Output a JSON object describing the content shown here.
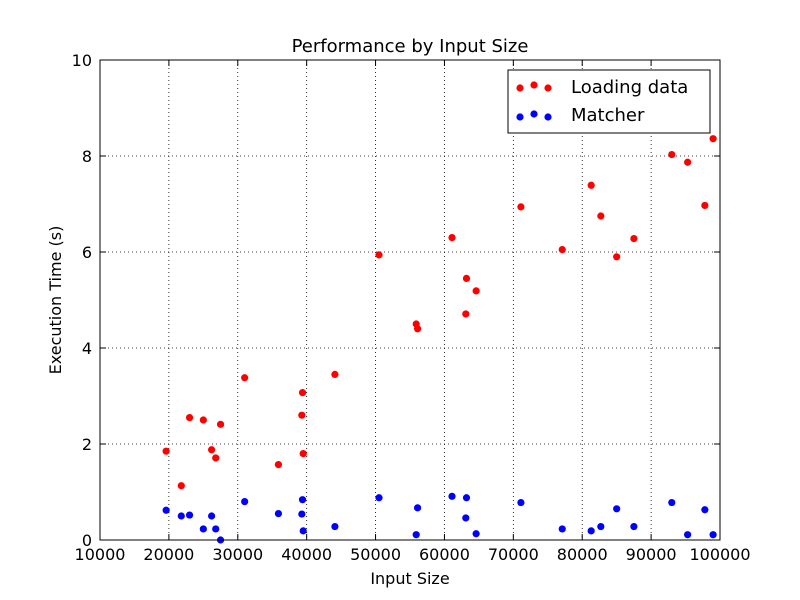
{
  "chart_data": {
    "type": "scatter",
    "title": "Performance by Input Size",
    "xlabel": "Input Size",
    "ylabel": "Execution Time (s)",
    "xlim": [
      10000,
      100000
    ],
    "ylim": [
      0,
      10
    ],
    "xticks": [
      10000,
      20000,
      30000,
      40000,
      50000,
      60000,
      70000,
      80000,
      90000,
      100000
    ],
    "yticks": [
      0,
      2,
      4,
      6,
      8,
      10
    ],
    "grid": true,
    "legend_position": "top-right",
    "series": [
      {
        "name": "Loading data",
        "color": "#ff0000",
        "points": [
          [
            19600,
            1.85
          ],
          [
            21800,
            1.13
          ],
          [
            23000,
            2.55
          ],
          [
            25000,
            2.5
          ],
          [
            26200,
            1.88
          ],
          [
            26800,
            1.71
          ],
          [
            27500,
            2.41
          ],
          [
            31000,
            3.38
          ],
          [
            35900,
            1.57
          ],
          [
            39300,
            2.6
          ],
          [
            39400,
            3.07
          ],
          [
            39500,
            1.8
          ],
          [
            44100,
            3.45
          ],
          [
            50500,
            5.94
          ],
          [
            55900,
            4.5
          ],
          [
            56100,
            4.4
          ],
          [
            61100,
            6.3
          ],
          [
            63100,
            4.71
          ],
          [
            63200,
            5.45
          ],
          [
            64600,
            5.19
          ],
          [
            71100,
            6.94
          ],
          [
            77100,
            6.05
          ],
          [
            81300,
            7.39
          ],
          [
            82700,
            6.75
          ],
          [
            85000,
            5.9
          ],
          [
            87500,
            6.28
          ],
          [
            93000,
            8.03
          ],
          [
            95300,
            7.87
          ],
          [
            97800,
            6.97
          ],
          [
            99000,
            8.36
          ]
        ]
      },
      {
        "name": "Matcher",
        "color": "#0000ff",
        "points": [
          [
            19600,
            0.62
          ],
          [
            21800,
            0.5
          ],
          [
            23000,
            0.52
          ],
          [
            25000,
            0.23
          ],
          [
            26200,
            0.5
          ],
          [
            26800,
            0.23
          ],
          [
            27500,
            0.0
          ],
          [
            31000,
            0.8
          ],
          [
            35900,
            0.55
          ],
          [
            39300,
            0.54
          ],
          [
            39400,
            0.84
          ],
          [
            39500,
            0.19
          ],
          [
            44100,
            0.28
          ],
          [
            50500,
            0.88
          ],
          [
            55900,
            0.11
          ],
          [
            56100,
            0.67
          ],
          [
            61100,
            0.91
          ],
          [
            63100,
            0.46
          ],
          [
            63200,
            0.88
          ],
          [
            64600,
            0.13
          ],
          [
            71100,
            0.78
          ],
          [
            77100,
            0.23
          ],
          [
            81300,
            0.19
          ],
          [
            82700,
            0.28
          ],
          [
            85000,
            0.65
          ],
          [
            87500,
            0.28
          ],
          [
            93000,
            0.78
          ],
          [
            95300,
            0.11
          ],
          [
            97800,
            0.63
          ],
          [
            99000,
            0.11
          ]
        ]
      }
    ]
  }
}
